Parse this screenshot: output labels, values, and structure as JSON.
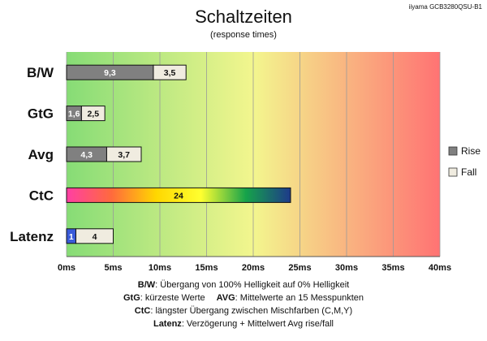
{
  "title": "Schaltzeiten",
  "subtitle": "(response times)",
  "model": "iiyama GCB3280QSU-B1",
  "footer": [
    {
      "bold": "B/W",
      "text": ":  Übergang von 100% Helligkeit auf 0% Helligkeit"
    },
    {
      "bold": "GtG",
      "text": ": kürzeste  Werte",
      "bold2": "AVG",
      "text2": ": Mittelwerte  an 15 Messpunkten"
    },
    {
      "bold": "CtC",
      "text": ": längster Übergang  zwischen Mischfarben  (C,M,Y)"
    },
    {
      "bold": "Latenz",
      "text": ": Verzögerung  + Mittelwert  Avg rise/fall"
    }
  ],
  "colors": {
    "rise": "#808080",
    "fall": "#f0ece0",
    "latenz_rise": "#3a5bd9",
    "gradient": [
      "#86dc76",
      "#f3f68e",
      "#ff7373"
    ],
    "ctc_gradient": [
      "#ff3fa4",
      "#ff6a3d",
      "#ffd700",
      "#ffff30",
      "#16a34a",
      "#1e3a8a"
    ]
  },
  "chart_data": {
    "type": "bar",
    "orientation": "horizontal",
    "stacked": true,
    "categories": [
      "B/W",
      "GtG",
      "Avg",
      "CtC",
      "Latenz"
    ],
    "series": [
      {
        "name": "Rise",
        "values": [
          9.3,
          1.6,
          4.3,
          24,
          1
        ]
      },
      {
        "name": "Fall",
        "values": [
          3.5,
          2.5,
          3.7,
          null,
          4
        ]
      }
    ],
    "data_labels": [
      [
        "9,3",
        "1,6",
        "4,3",
        "24",
        "1"
      ],
      [
        "3,5",
        "2,5",
        "3,7",
        "",
        "4"
      ]
    ],
    "xlim": [
      0,
      40
    ],
    "xticks": [
      0,
      5,
      10,
      15,
      20,
      25,
      30,
      35,
      40
    ],
    "xtick_labels": [
      "0ms",
      "5ms",
      "10ms",
      "15ms",
      "20ms",
      "25ms",
      "30ms",
      "35ms",
      "40ms"
    ],
    "grid": true,
    "legend": {
      "position": "right",
      "entries": [
        "Rise",
        "Fall"
      ]
    }
  }
}
